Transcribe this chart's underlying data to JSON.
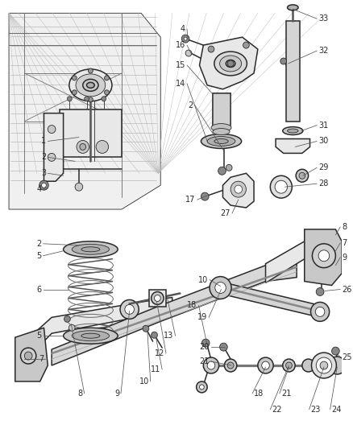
{
  "bg_color": "#ffffff",
  "line_color": "#2a2a2a",
  "text_color": "#1a1a1a",
  "fig_width": 4.38,
  "fig_height": 5.33,
  "dpi": 100,
  "label_fontsize": 7.0,
  "callout_lw": 0.55,
  "part_lw_thin": 0.6,
  "part_lw_main": 1.1,
  "part_lw_thick": 1.8,
  "gray_fill": "#c8c8c8",
  "light_fill": "#e8e8e8",
  "dark_fill": "#888888",
  "mid_fill": "#b0b0b0"
}
